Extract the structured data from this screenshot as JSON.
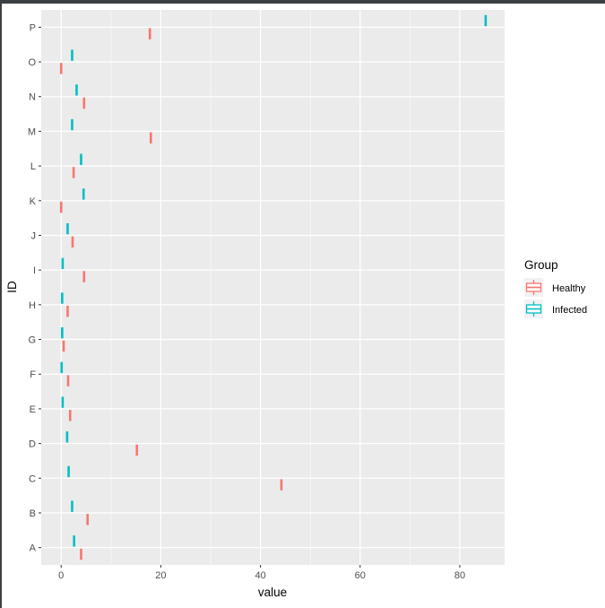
{
  "chart_data": {
    "type": "boxplot",
    "xlabel": "value",
    "ylabel": "ID",
    "xlim": [
      -4,
      89
    ],
    "x_ticks": [
      0,
      20,
      40,
      60,
      80
    ],
    "x_tick_labels": [
      "0",
      "20",
      "40",
      "60",
      "80"
    ],
    "categories": [
      "A",
      "B",
      "C",
      "D",
      "E",
      "F",
      "G",
      "H",
      "I",
      "J",
      "K",
      "L",
      "M",
      "N",
      "O",
      "P"
    ],
    "grid": true,
    "legend": {
      "title": "Group",
      "placement": "right",
      "entries": [
        {
          "name": "Healthy",
          "color": "#F8766D"
        },
        {
          "name": "Infected",
          "color": "#00BFC4"
        }
      ]
    },
    "series": [
      {
        "name": "Healthy",
        "color": "#F8766D",
        "values": [
          4,
          5.3,
          44.2,
          15.2,
          1.8,
          1.4,
          0.5,
          1.3,
          4.6,
          2.3,
          0,
          2.5,
          18,
          4.6,
          0,
          17.8
        ]
      },
      {
        "name": "Infected",
        "color": "#00BFC4",
        "values": [
          2.6,
          2.2,
          1.5,
          1.2,
          0.3,
          0.1,
          0.2,
          0.2,
          0.3,
          1.3,
          4.5,
          4,
          2.2,
          3.1,
          2.2,
          85.2
        ]
      }
    ]
  }
}
